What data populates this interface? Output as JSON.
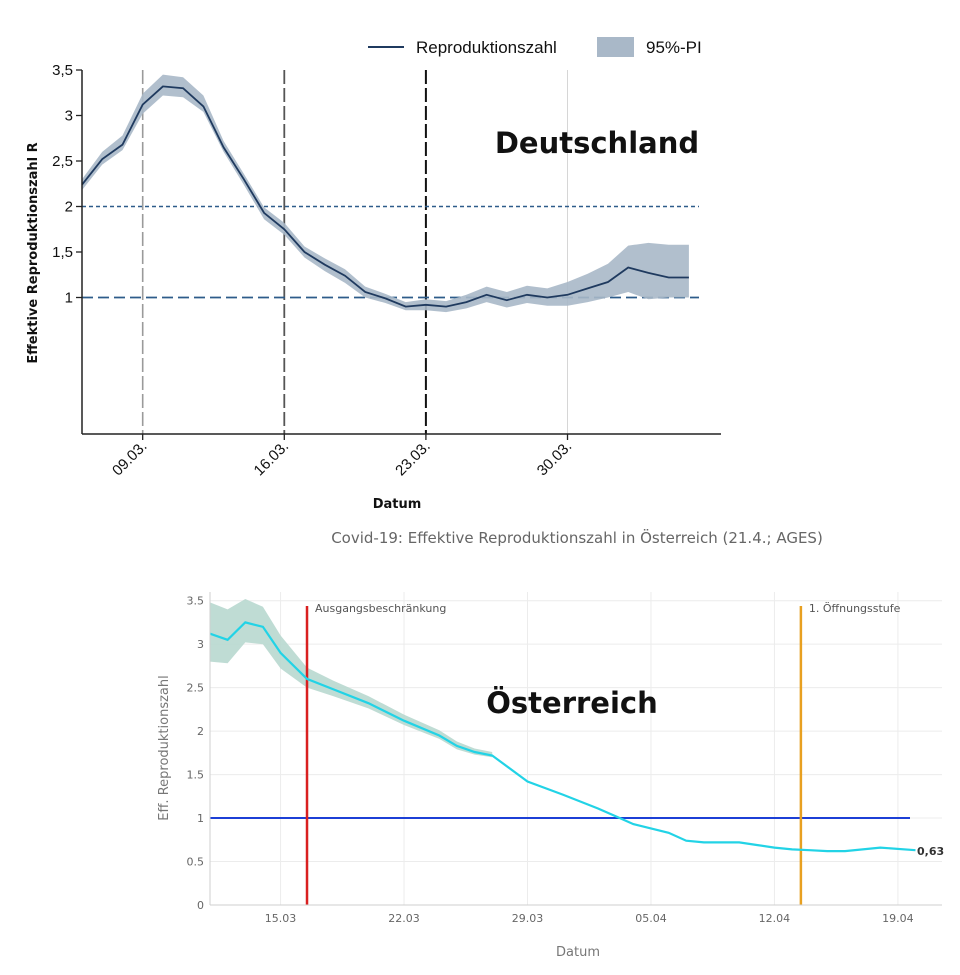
{
  "colors": {
    "de_line": "#1f3a5f",
    "de_band": "#a9b8c8",
    "de_threshold": "#2e5c8a",
    "at_line": "#22d3e6",
    "at_band": "#b8d8cf",
    "at_threshold": "#1c3fd6",
    "at_marker_lockdown": "#d92020",
    "at_marker_opening": "#e8a020"
  },
  "chart_data": [
    {
      "type": "line",
      "title": "Deutschland",
      "xlabel": "Datum",
      "ylabel": "Effektive Reproduktionszahl R",
      "x_tick_labels": [
        "09.03.",
        "16.03.",
        "23.03.",
        "30.03."
      ],
      "y_tick_labels": [
        "1",
        "1,5",
        "2",
        "2,5",
        "3",
        "3,5"
      ],
      "ylim": [
        -0.5,
        3.5
      ],
      "xlim": [
        6.0,
        36.5
      ],
      "x_unit": "day of March",
      "legend": {
        "placement": "top",
        "line_label": "Reproduktionszahl",
        "band_label": "95%-PI"
      },
      "series": [
        {
          "name": "Reproduktionszahl",
          "x": [
            6,
            7,
            8,
            9,
            10,
            11,
            12,
            13,
            14,
            15,
            16,
            17,
            18,
            19,
            20,
            21,
            22,
            23,
            24,
            25,
            26,
            27,
            28,
            29,
            30,
            31,
            32,
            33,
            34,
            35,
            36
          ],
          "values": [
            2.24,
            2.52,
            2.68,
            3.12,
            3.32,
            3.3,
            3.1,
            2.65,
            2.3,
            1.93,
            1.75,
            1.5,
            1.36,
            1.24,
            1.06,
            0.99,
            0.9,
            0.92,
            0.9,
            0.95,
            1.03,
            0.97,
            1.03,
            1.0,
            1.03,
            1.1,
            1.17,
            1.33,
            1.27,
            1.22,
            1.22
          ]
        }
      ],
      "interval": {
        "name": "95%-PI",
        "lower": [
          2.18,
          2.46,
          2.62,
          3.02,
          3.22,
          3.2,
          3.04,
          2.6,
          2.24,
          1.86,
          1.69,
          1.44,
          1.29,
          1.16,
          1.0,
          0.94,
          0.86,
          0.86,
          0.84,
          0.88,
          0.95,
          0.89,
          0.94,
          0.91,
          0.91,
          0.95,
          1.0,
          1.06,
          0.98,
          1.0,
          1.0
        ],
        "upper": [
          2.3,
          2.6,
          2.78,
          3.24,
          3.45,
          3.42,
          3.22,
          2.72,
          2.36,
          1.99,
          1.82,
          1.56,
          1.43,
          1.31,
          1.12,
          1.04,
          0.95,
          0.98,
          0.96,
          1.03,
          1.12,
          1.06,
          1.13,
          1.1,
          1.17,
          1.26,
          1.37,
          1.57,
          1.6,
          1.58,
          1.58
        ]
      },
      "reference_lines_y": [
        1,
        2
      ],
      "reference_lines_x": [
        9,
        16,
        23,
        30
      ]
    },
    {
      "type": "line",
      "title": "Covid-19: Effektive Reproduktionszahl in Österreich (21.4.; AGES)",
      "panel_label": "Österreich",
      "xlabel": "Datum",
      "ylabel": "Eff. Reproduktionszahl",
      "x_tick_labels": [
        "15.03",
        "22.03",
        "29.03",
        "05.04",
        "12.04",
        "19.04"
      ],
      "y_tick_labels": [
        "0",
        "0.5",
        "1",
        "1.5",
        "2",
        "2.5",
        "3",
        "3.5"
      ],
      "ylim": [
        0,
        3.6
      ],
      "xlim": [
        11.0,
        52.5
      ],
      "x_unit": "day counted from 1 March",
      "end_label": "0,63",
      "annotations": [
        {
          "x": 16.5,
          "text": "Ausgangsbeschränkung"
        },
        {
          "x": 44.5,
          "text": "1. Öffnungsstufe"
        }
      ],
      "series": [
        {
          "name": "Eff. Reproduktionszahl",
          "x": [
            11,
            12,
            13,
            14,
            15,
            16.5,
            18,
            20,
            22,
            24,
            25,
            26,
            27,
            29,
            31,
            33,
            34,
            35,
            37,
            38,
            39,
            41,
            42,
            43,
            44,
            45,
            46,
            47,
            49,
            51
          ],
          "values": [
            3.12,
            3.05,
            3.25,
            3.2,
            2.9,
            2.6,
            2.48,
            2.32,
            2.12,
            1.95,
            1.83,
            1.76,
            1.72,
            1.42,
            1.27,
            1.11,
            1.02,
            0.93,
            0.83,
            0.74,
            0.72,
            0.72,
            0.69,
            0.66,
            0.64,
            0.63,
            0.62,
            0.62,
            0.66,
            0.63
          ]
        }
      ],
      "interval": {
        "x": [
          11,
          12,
          13,
          14,
          15,
          16.5,
          18,
          20,
          22,
          24,
          25,
          26,
          27
        ],
        "lower": [
          2.8,
          2.78,
          3.02,
          3.0,
          2.72,
          2.5,
          2.4,
          2.26,
          2.07,
          1.91,
          1.79,
          1.73,
          1.7
        ],
        "upper": [
          3.48,
          3.4,
          3.52,
          3.43,
          3.1,
          2.73,
          2.58,
          2.4,
          2.19,
          2.01,
          1.88,
          1.8,
          1.76
        ]
      },
      "reference_lines_y": [
        1
      ],
      "vertical_markers_x": [
        16.5,
        44.5
      ]
    }
  ]
}
